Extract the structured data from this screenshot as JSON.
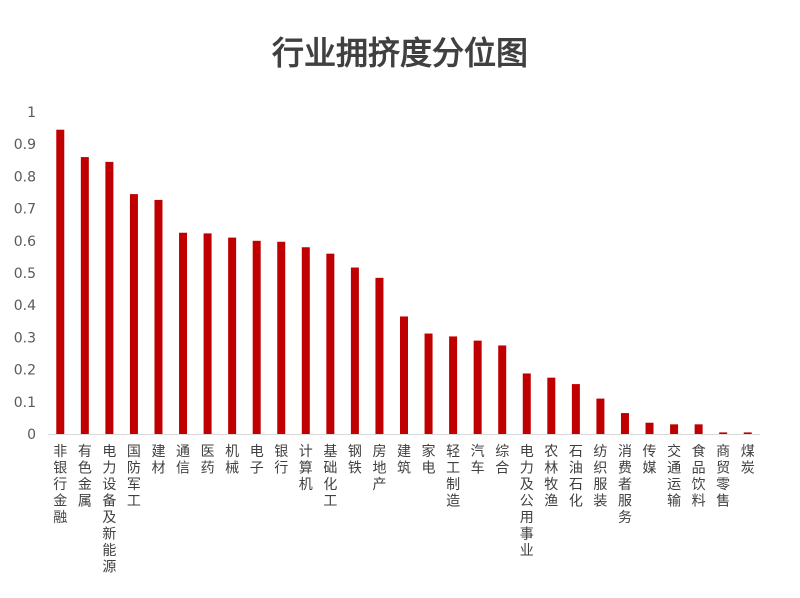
{
  "chart_data": {
    "type": "bar",
    "title": "行业拥挤度分位图",
    "xlabel": "",
    "ylabel": "",
    "ylim": [
      0,
      1
    ],
    "yticks": [
      "0",
      "0.1",
      "0.2",
      "0.3",
      "0.4",
      "0.5",
      "0.6",
      "0.7",
      "0.8",
      "0.9",
      "1"
    ],
    "grid": false,
    "legend": "none",
    "bar_color": "#C00000",
    "categories": [
      "非银行金融",
      "有色金属",
      "电力设备及新能源",
      "国防军工",
      "建材",
      "通信",
      "医药",
      "机械",
      "电子",
      "银行",
      "计算机",
      "基础化工",
      "钢铁",
      "房地产",
      "建筑",
      "家电",
      "轻工制造",
      "汽车",
      "综合",
      "电力及公用事业",
      "农林牧渔",
      "石油石化",
      "纺织服装",
      "消费者服务",
      "传媒",
      "交通运输",
      "食品饮料",
      "商贸零售",
      "煤炭"
    ],
    "values": [
      0.945,
      0.86,
      0.845,
      0.745,
      0.727,
      0.625,
      0.623,
      0.61,
      0.6,
      0.597,
      0.58,
      0.56,
      0.517,
      0.485,
      0.365,
      0.312,
      0.303,
      0.29,
      0.275,
      0.188,
      0.175,
      0.155,
      0.11,
      0.065,
      0.035,
      0.03,
      0.03,
      0.005,
      0.005
    ]
  }
}
